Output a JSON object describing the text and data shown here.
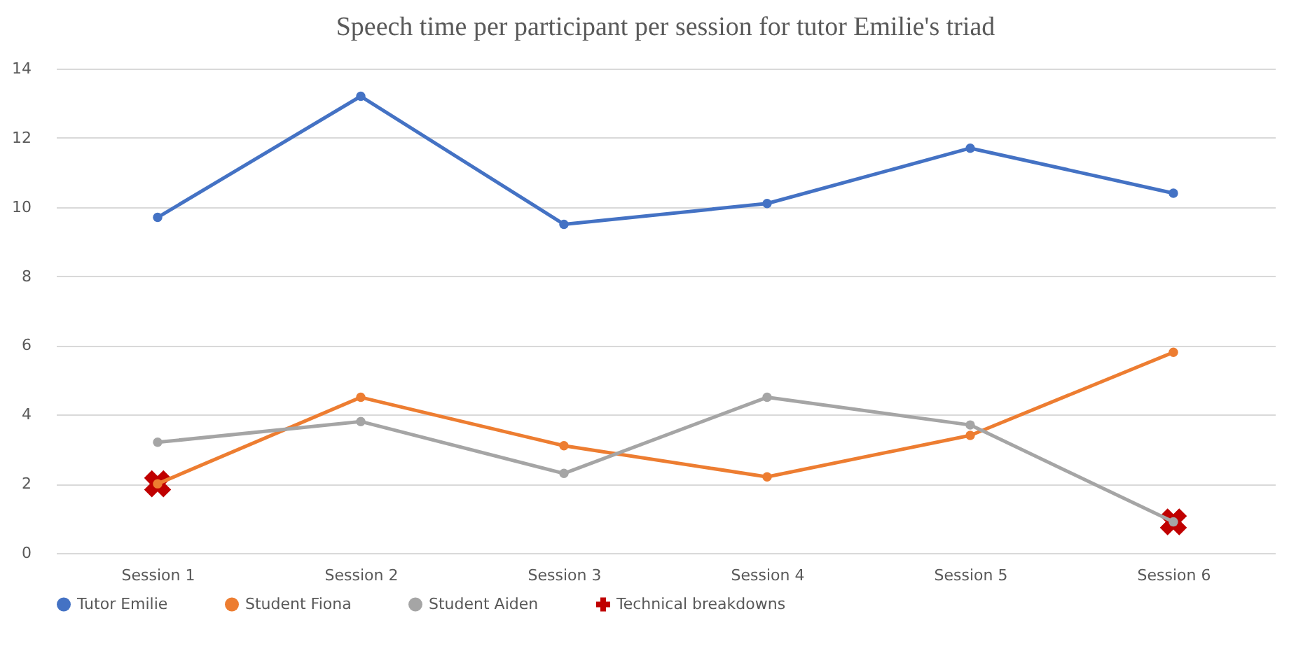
{
  "chart_data": {
    "type": "line",
    "title": "Speech time per participant per session for tutor Emilie's triad",
    "categories": [
      "Session 1",
      "Session 2",
      "Session 3",
      "Session 4",
      "Session 5",
      "Session 6"
    ],
    "series": [
      {
        "name": "Tutor Emilie",
        "color": "#4472c4",
        "values": [
          9.7,
          13.2,
          9.5,
          10.1,
          11.7,
          10.4
        ]
      },
      {
        "name": "Student Fiona",
        "color": "#ed7d31",
        "values": [
          2.0,
          4.5,
          3.1,
          2.2,
          3.4,
          5.8
        ]
      },
      {
        "name": "Student Aiden",
        "color": "#a5a5a5",
        "values": [
          3.2,
          3.8,
          2.3,
          4.5,
          3.7,
          0.9
        ]
      },
      {
        "name": "Technical breakdowns",
        "type": "scatter",
        "marker": "cross",
        "color": "#c00000",
        "values": [
          2.0,
          null,
          null,
          null,
          null,
          0.9
        ]
      }
    ],
    "ylim": [
      0,
      14
    ],
    "yticks": [
      0,
      2,
      4,
      6,
      8,
      10,
      12,
      14
    ],
    "grid": "y",
    "marker": "circle",
    "legend": "bottom"
  }
}
